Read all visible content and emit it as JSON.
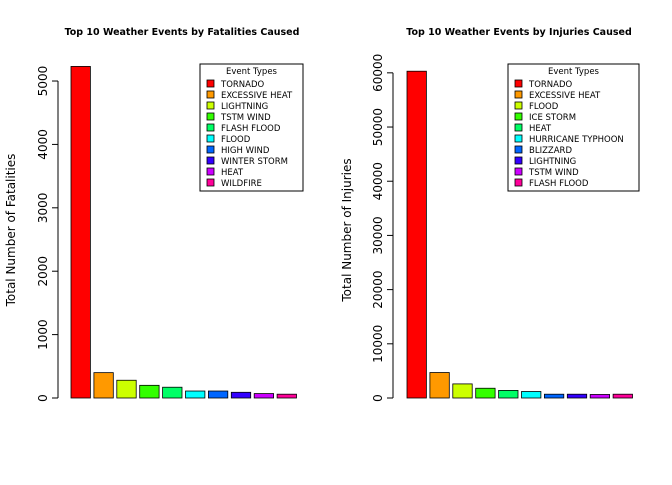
{
  "chart_data": [
    {
      "type": "bar",
      "title": "Top 10 Weather Events by Fatalities Caused",
      "xlabel": "",
      "ylabel": "Total Number of Fatalities",
      "ylim": [
        0,
        5300
      ],
      "yticks": [
        0,
        1000,
        2000,
        3000,
        4000,
        5000
      ],
      "categories": [
        "TORNADO",
        "EXCESSIVE HEAT",
        "LIGHTNING",
        "TSTM WIND",
        "FLASH FLOOD",
        "FLOOD",
        "HIGH WIND",
        "WINTER STORM",
        "HEAT",
        "WILDFIRE"
      ],
      "values": [
        5230,
        400,
        280,
        200,
        170,
        110,
        110,
        90,
        70,
        60
      ],
      "colors": [
        "#FF0000",
        "#FF9900",
        "#CCFF00",
        "#33FF00",
        "#00FF66",
        "#00FFFF",
        "#0066FF",
        "#3300FF",
        "#CC00FF",
        "#FF0099"
      ],
      "legend": {
        "title": "Event Types",
        "position": "top-right"
      },
      "grid": false
    },
    {
      "type": "bar",
      "title": "Top 10 Weather Events by Injuries Caused",
      "xlabel": "",
      "ylabel": "Total Number of Injuries",
      "ylim": [
        0,
        62000
      ],
      "yticks": [
        0,
        10000,
        20000,
        30000,
        40000,
        50000,
        60000
      ],
      "categories": [
        "TORNADO",
        "EXCESSIVE HEAT",
        "FLOOD",
        "ICE STORM",
        "HEAT",
        "HURRICANE TYPHOON",
        "BLIZZARD",
        "LIGHTNING",
        "TSTM WIND",
        "FLASH FLOOD"
      ],
      "values": [
        60300,
        4700,
        2600,
        1800,
        1400,
        1200,
        700,
        700,
        650,
        700
      ],
      "colors": [
        "#FF0000",
        "#FF9900",
        "#CCFF00",
        "#33FF00",
        "#00FF66",
        "#00FFFF",
        "#0066FF",
        "#3300FF",
        "#CC00FF",
        "#FF0099"
      ],
      "legend": {
        "title": "Event Types",
        "position": "top-right"
      },
      "grid": false
    }
  ]
}
